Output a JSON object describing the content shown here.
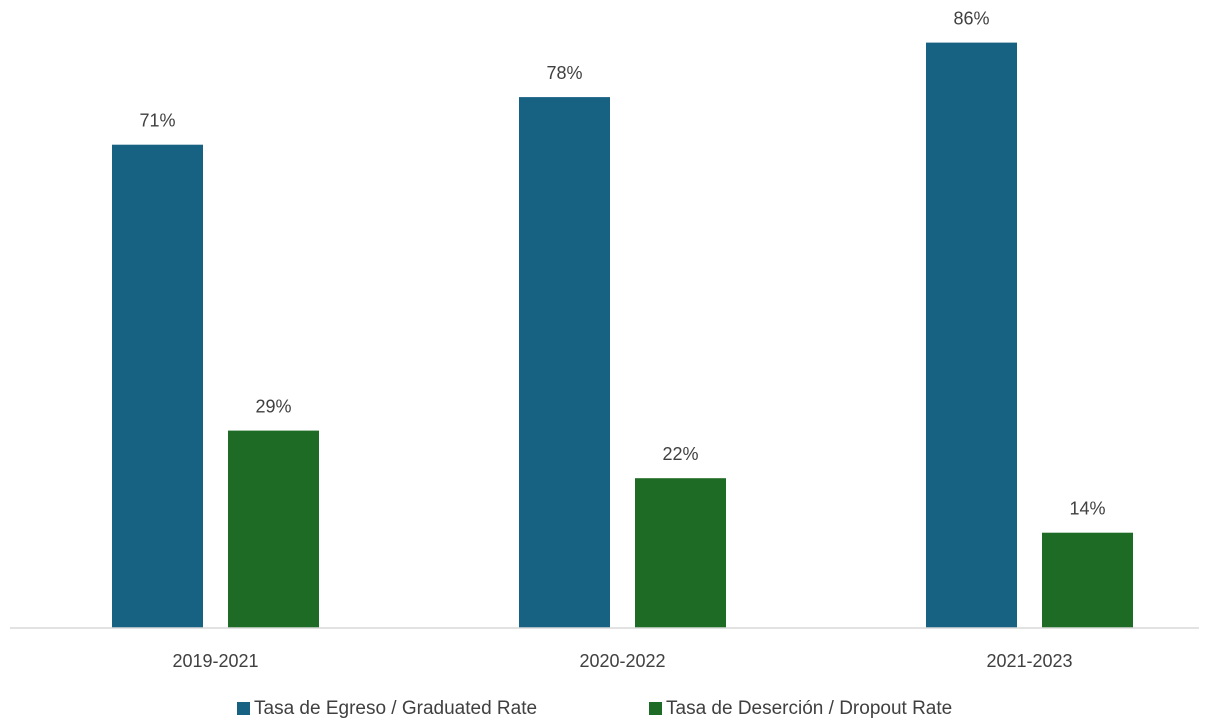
{
  "chart_data": {
    "type": "bar",
    "title": "",
    "xlabel": "",
    "ylabel": "",
    "ylim": [
      0,
      100
    ],
    "grid": false,
    "legend_position": "bottom",
    "categories": [
      "2019-2021",
      "2020-2022",
      "2021-2023"
    ],
    "series": [
      {
        "name": "Tasa de Egreso / Graduated Rate",
        "color": "#176183",
        "values": [
          71,
          78,
          86
        ],
        "labels": [
          "71%",
          "78%",
          "86%"
        ]
      },
      {
        "name": "Tasa de Deserción / Dropout Rate",
        "color": "#1e6b25",
        "values": [
          29,
          22,
          14
        ],
        "labels": [
          "29%",
          "22%",
          "14%"
        ]
      }
    ]
  }
}
